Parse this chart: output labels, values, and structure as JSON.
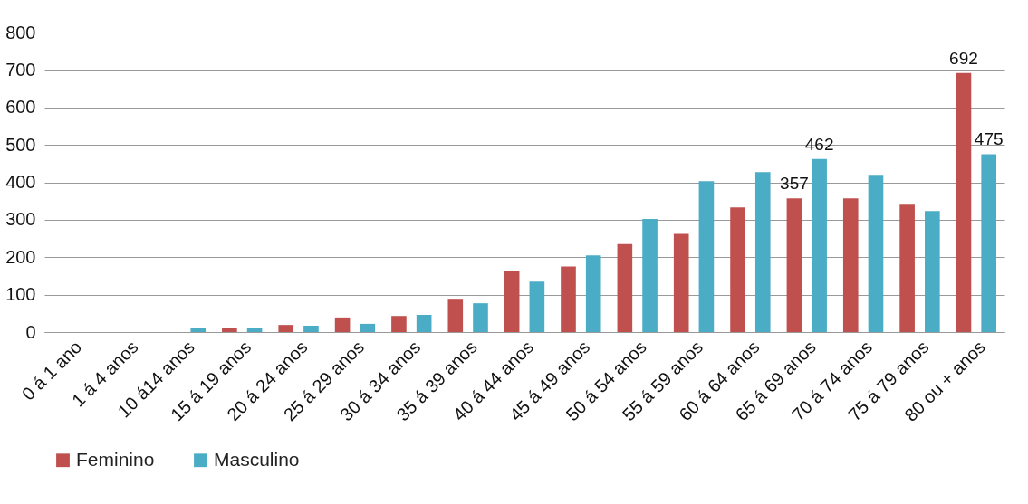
{
  "chart_data": {
    "type": "bar",
    "categories": [
      "0 á 1 ano",
      "1 á 4 anos",
      "10 á14 anos",
      "15 á 19 anos",
      "20 á 24 anos",
      "25 á 29 anos",
      "30 á 34 anos",
      "35 á 39 anos",
      "40 á 44 anos",
      "45 á 49 anos",
      "50 á 54 anos",
      "55 á 59 anos",
      "60 á 64 anos",
      "65 á 69 anos",
      "70 á 74 anos",
      "75 á 79 anos",
      "80 ou + anos"
    ],
    "series": [
      {
        "name": "Feminino",
        "color": "#c0504d",
        "values": [
          0,
          0,
          0,
          12,
          19,
          39,
          43,
          89,
          164,
          175,
          235,
          262,
          333,
          357,
          357,
          340,
          692
        ],
        "value_labels": [
          null,
          null,
          null,
          null,
          null,
          null,
          null,
          null,
          null,
          null,
          null,
          null,
          null,
          "357",
          null,
          null,
          "692"
        ]
      },
      {
        "name": "Masculino",
        "color": "#4bacc6",
        "values": [
          0,
          0,
          12,
          12,
          17,
          22,
          46,
          77,
          135,
          205,
          302,
          403,
          427,
          462,
          420,
          323,
          475
        ],
        "value_labels": [
          null,
          null,
          null,
          null,
          null,
          null,
          null,
          null,
          null,
          null,
          null,
          null,
          null,
          "462",
          null,
          null,
          "475"
        ]
      }
    ],
    "ylim": [
      0,
      800
    ],
    "yticks": [
      0,
      100,
      200,
      300,
      400,
      500,
      600,
      700,
      800
    ],
    "grid": "y",
    "legend": "bottom"
  }
}
